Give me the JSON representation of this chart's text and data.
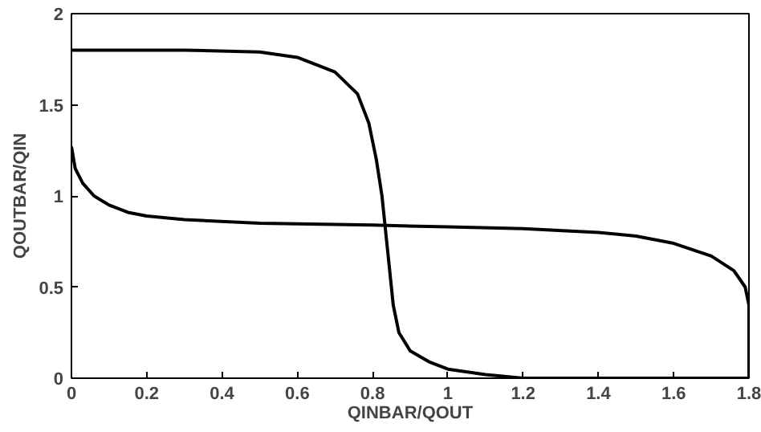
{
  "chart_data": {
    "type": "line",
    "xlabel": "QINBAR/QOUT",
    "ylabel": "QOUTBAR/QIN",
    "xlim": [
      0,
      1.8
    ],
    "ylim": [
      0,
      2
    ],
    "xticks": [
      0,
      0.2,
      0.4,
      0.6,
      0.8,
      1,
      1.2,
      1.4,
      1.6,
      1.8
    ],
    "yticks": [
      0,
      0.5,
      1,
      1.5,
      2
    ],
    "grid": false,
    "marker": "none",
    "line_style": "solid",
    "series": [
      {
        "color": "#000000",
        "x": [
          0,
          0.3,
          0.5,
          0.6,
          0.7,
          0.76,
          0.79,
          0.81,
          0.825,
          0.835,
          0.845,
          0.855,
          0.87,
          0.9,
          0.95,
          1.0,
          1.1,
          1.2,
          1.8
        ],
        "values": [
          1.8,
          1.8,
          1.79,
          1.76,
          1.68,
          1.56,
          1.4,
          1.2,
          1.0,
          0.8,
          0.6,
          0.4,
          0.25,
          0.15,
          0.09,
          0.05,
          0.02,
          0.0,
          0.0
        ]
      },
      {
        "color": "#000000",
        "x": [
          0,
          0.01,
          0.03,
          0.06,
          0.1,
          0.15,
          0.2,
          0.3,
          0.5,
          0.8,
          1.0,
          1.2,
          1.4,
          1.5,
          1.6,
          1.7,
          1.76,
          1.79,
          1.8,
          1.8
        ],
        "values": [
          1.27,
          1.15,
          1.07,
          1.0,
          0.95,
          0.91,
          0.89,
          0.87,
          0.85,
          0.84,
          0.83,
          0.82,
          0.8,
          0.78,
          0.74,
          0.67,
          0.59,
          0.5,
          0.4,
          0.0
        ]
      }
    ]
  }
}
